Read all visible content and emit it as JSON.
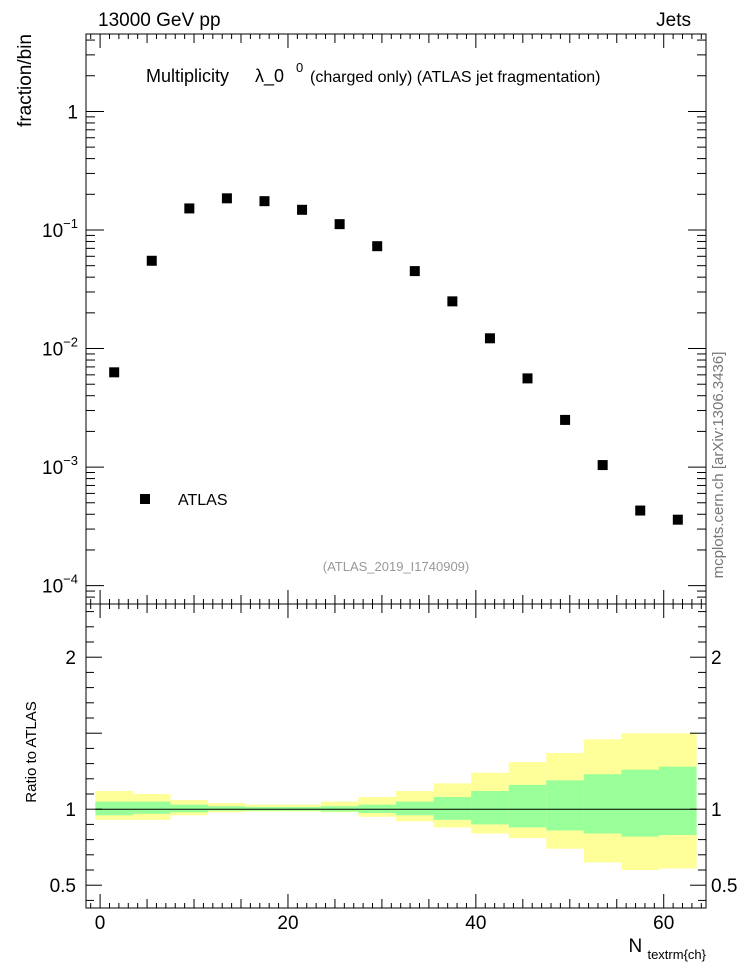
{
  "header": {
    "left_label": "13000 GeV pp",
    "right_label": "Jets"
  },
  "side_label": "mcplots.cern.ch [arXiv:1306.3436]",
  "chart_data": [
    {
      "type": "scatter",
      "panel": "main",
      "title_prefix": "Multiplicity",
      "title_symbol": "λ_0",
      "title_superscript": "0",
      "title_suffix": "(charged only) (ATLAS jet fragmentation)",
      "ylabel": "fraction/bin",
      "yscale": "log",
      "ylim": [
        7e-05,
        4.5
      ],
      "xlim": [
        -1.5,
        64.5
      ],
      "ytick_labels": [
        {
          "value": 1,
          "base": "1",
          "exp": ""
        },
        {
          "value": 0.1,
          "base": "10",
          "exp": "−1"
        },
        {
          "value": 0.01,
          "base": "10",
          "exp": "−2"
        },
        {
          "value": 0.001,
          "base": "10",
          "exp": "−3"
        },
        {
          "value": 0.0001,
          "base": "10",
          "exp": "−4"
        }
      ],
      "legend": {
        "label": "ATLAS",
        "position": "bottom-left"
      },
      "analysis_label": "(ATLAS_2019_I1740909)",
      "series": [
        {
          "name": "ATLAS",
          "marker": "square",
          "color": "#000000",
          "x": [
            1.5,
            5.5,
            9.5,
            13.5,
            17.5,
            21.5,
            25.5,
            29.5,
            33.5,
            37.5,
            41.5,
            45.5,
            49.5,
            53.5,
            57.5,
            61.5
          ],
          "y": [
            0.0063,
            0.055,
            0.152,
            0.185,
            0.175,
            0.148,
            0.112,
            0.073,
            0.045,
            0.025,
            0.0122,
            0.0056,
            0.0025,
            0.00104,
            0.00043,
            0.00036
          ]
        }
      ]
    },
    {
      "type": "area",
      "panel": "ratio",
      "ylabel": "Ratio to ATLAS",
      "xlabel_base": "N",
      "xlabel_sub": "textrm{ch}",
      "ylim": [
        0.35,
        2.35
      ],
      "xlim": [
        -1.5,
        64.5
      ],
      "yticks": [
        0.5,
        1,
        2
      ],
      "ytick_labels": [
        "0.5",
        "1",
        "2"
      ],
      "xticks": [
        0,
        20,
        40,
        60
      ],
      "xtick_labels": [
        "0",
        "20",
        "40",
        "60"
      ],
      "reference_line": 1,
      "bin_edges": [
        -0.5,
        3.5,
        7.5,
        11.5,
        15.5,
        19.5,
        23.5,
        27.5,
        31.5,
        35.5,
        39.5,
        43.5,
        47.5,
        51.5,
        55.5,
        59.5,
        63.5
      ],
      "bands": [
        {
          "name": "total uncertainty",
          "color": "#ffff99",
          "low": [
            0.93,
            0.93,
            0.96,
            0.98,
            0.985,
            0.985,
            0.98,
            0.95,
            0.92,
            0.88,
            0.84,
            0.81,
            0.74,
            0.65,
            0.6,
            0.61
          ],
          "high": [
            1.12,
            1.1,
            1.06,
            1.04,
            1.03,
            1.03,
            1.05,
            1.08,
            1.12,
            1.17,
            1.24,
            1.31,
            1.37,
            1.46,
            1.5,
            1.5
          ]
        },
        {
          "name": "statistical uncertainty",
          "color": "#99ff99",
          "low": [
            0.96,
            0.97,
            0.98,
            0.99,
            0.99,
            0.99,
            0.985,
            0.975,
            0.96,
            0.93,
            0.9,
            0.88,
            0.86,
            0.84,
            0.82,
            0.83
          ],
          "high": [
            1.05,
            1.05,
            1.03,
            1.02,
            1.015,
            1.015,
            1.02,
            1.03,
            1.05,
            1.08,
            1.12,
            1.16,
            1.19,
            1.23,
            1.26,
            1.28
          ]
        }
      ]
    }
  ]
}
